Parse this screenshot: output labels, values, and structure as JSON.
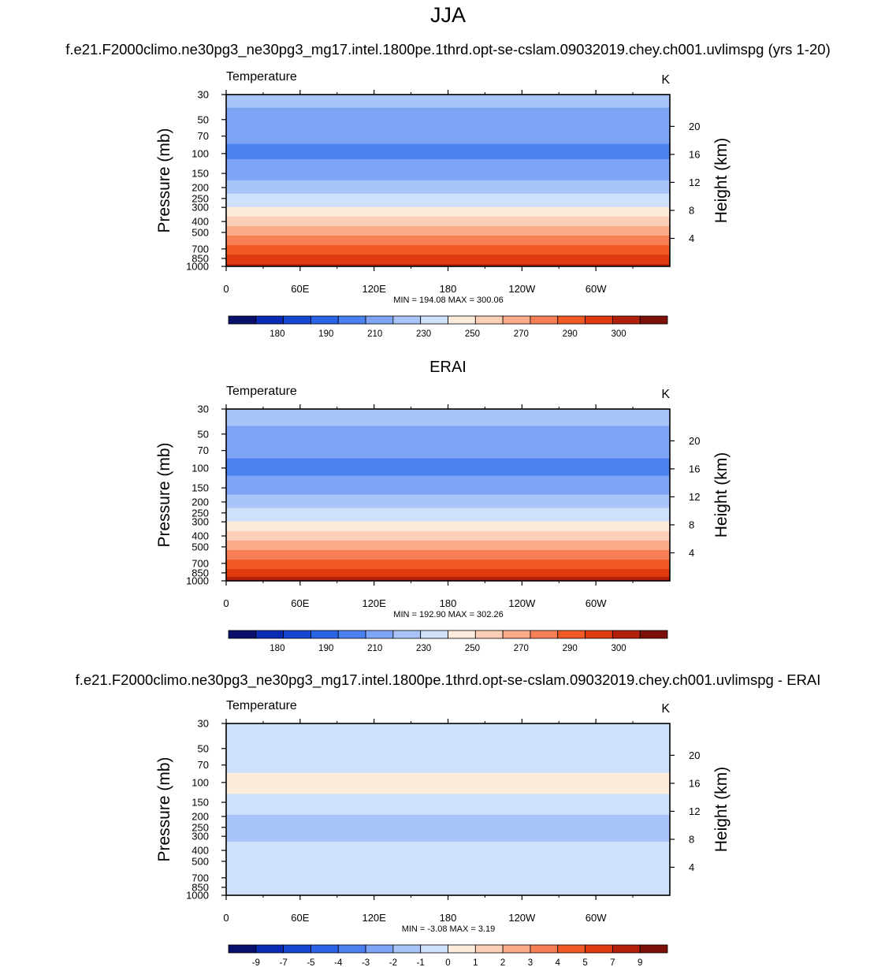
{
  "header": {
    "season": "JJA",
    "case_name": "f.e21.F2000climo.ne30pg3_ne30pg3_mg17.intel.1800pe.1thrd.opt-se-cslam.09032019.chey.ch001.uvlimspg (yrs 1-20)",
    "reference_name": "ERAI",
    "difference_name": "f.e21.F2000climo.ne30pg3_ne30pg3_mg17.intel.1800pe.1thrd.opt-se-cslam.09032019.chey.ch001.uvlimspg - ERAI"
  },
  "colors": {
    "temperature_palette": [
      "#08106b",
      "#0a2cb4",
      "#1547d2",
      "#2a63e6",
      "#4a80f0",
      "#7ea4f6",
      "#a8c4f8",
      "#cfe0fb",
      "#fdebdc",
      "#fcd0b8",
      "#fbab8a",
      "#f77f55",
      "#f25a25",
      "#e03a10",
      "#b21f0a",
      "#7c1008"
    ],
    "difference_palette": [
      "#08106b",
      "#0a2cb4",
      "#1547d2",
      "#2a63e6",
      "#4a80f0",
      "#7ea4f6",
      "#a8c4f8",
      "#cfe0fb",
      "#fdebdc",
      "#fcd0b8",
      "#fbab8a",
      "#f77f55",
      "#f25a25",
      "#e03a10",
      "#b21f0a",
      "#7c1008"
    ],
    "land_mask": "#000000"
  },
  "chart_data": [
    {
      "type": "heatmap",
      "id": "test",
      "left_title": "Temperature",
      "units": "K",
      "ylabel": "Pressure (mb)",
      "ylabel_right": "Height (km)",
      "pressure_ticks": [
        30,
        50,
        70,
        100,
        150,
        200,
        250,
        300,
        400,
        500,
        700,
        850,
        1000
      ],
      "height_ticks": [
        4,
        8,
        12,
        16,
        20
      ],
      "lon_ticks": [
        "0",
        "60E",
        "120E",
        "180",
        "120W",
        "60W"
      ],
      "xlim": [
        0,
        360
      ],
      "ylim": [
        1000,
        30
      ],
      "stats": "MIN = 194.08  MAX = 300.06",
      "colorbar_labels": [
        "180",
        "190",
        "210",
        "230",
        "250",
        "270",
        "290",
        "300"
      ],
      "color_levels": [
        175,
        180,
        185,
        190,
        200,
        210,
        220,
        230,
        240,
        250,
        260,
        270,
        280,
        290,
        295,
        300
      ],
      "profile": [
        {
          "p": 30,
          "t": 212
        },
        {
          "p": 50,
          "t": 208
        },
        {
          "p": 70,
          "t": 203
        },
        {
          "p": 100,
          "t": 197
        },
        {
          "p": 150,
          "t": 206
        },
        {
          "p": 200,
          "t": 215
        },
        {
          "p": 250,
          "t": 223
        },
        {
          "p": 300,
          "t": 231
        },
        {
          "p": 400,
          "t": 246
        },
        {
          "p": 500,
          "t": 257
        },
        {
          "p": 700,
          "t": 274
        },
        {
          "p": 850,
          "t": 284
        },
        {
          "p": 1000,
          "t": 293
        }
      ]
    },
    {
      "type": "heatmap",
      "id": "reference",
      "left_title": "Temperature",
      "units": "K",
      "ylabel": "Pressure (mb)",
      "ylabel_right": "Height (km)",
      "pressure_ticks": [
        30,
        50,
        70,
        100,
        150,
        200,
        250,
        300,
        400,
        500,
        700,
        850,
        1000
      ],
      "height_ticks": [
        4,
        8,
        12,
        16,
        20
      ],
      "lon_ticks": [
        "0",
        "60E",
        "120E",
        "180",
        "120W",
        "60W"
      ],
      "xlim": [
        0,
        360
      ],
      "ylim": [
        1000,
        30
      ],
      "stats": "MIN = 192.90  MAX = 302.26",
      "colorbar_labels": [
        "180",
        "190",
        "210",
        "230",
        "250",
        "270",
        "290",
        "300"
      ],
      "color_levels": [
        175,
        180,
        185,
        190,
        200,
        210,
        220,
        230,
        240,
        250,
        260,
        270,
        280,
        290,
        295,
        300
      ],
      "profile": [
        {
          "p": 30,
          "t": 214
        },
        {
          "p": 50,
          "t": 208
        },
        {
          "p": 70,
          "t": 203
        },
        {
          "p": 100,
          "t": 196
        },
        {
          "p": 150,
          "t": 206
        },
        {
          "p": 200,
          "t": 215
        },
        {
          "p": 250,
          "t": 223
        },
        {
          "p": 300,
          "t": 231
        },
        {
          "p": 400,
          "t": 246
        },
        {
          "p": 500,
          "t": 257
        },
        {
          "p": 700,
          "t": 274
        },
        {
          "p": 850,
          "t": 285
        },
        {
          "p": 1000,
          "t": 294
        }
      ]
    },
    {
      "type": "heatmap",
      "id": "difference",
      "left_title": "Temperature",
      "units": "K",
      "ylabel": "Pressure (mb)",
      "ylabel_right": "Height (km)",
      "pressure_ticks": [
        30,
        50,
        70,
        100,
        150,
        200,
        250,
        300,
        400,
        500,
        700,
        850,
        1000
      ],
      "height_ticks": [
        4,
        8,
        12,
        16,
        20
      ],
      "lon_ticks": [
        "0",
        "60E",
        "120E",
        "180",
        "120W",
        "60W"
      ],
      "xlim": [
        0,
        360
      ],
      "ylim": [
        1000,
        30
      ],
      "stats": "MIN =  -3.08  MAX =   3.19",
      "colorbar_labels": [
        "-9",
        "-7",
        "-5",
        "-4",
        "-3",
        "-2",
        "-1",
        "0",
        "1",
        "2",
        "3",
        "4",
        "5",
        "7",
        "9"
      ],
      "color_levels": [
        -9,
        -7,
        -5,
        -4,
        -3,
        -2,
        -1,
        0,
        1,
        2,
        3,
        4,
        5,
        7,
        9
      ],
      "profile": [
        {
          "p": 30,
          "t": -0.6
        },
        {
          "p": 50,
          "t": -0.6
        },
        {
          "p": 70,
          "t": -0.4
        },
        {
          "p": 100,
          "t": 0.4
        },
        {
          "p": 150,
          "t": -0.3
        },
        {
          "p": 200,
          "t": -1.1
        },
        {
          "p": 250,
          "t": -1.2
        },
        {
          "p": 300,
          "t": -1.1
        },
        {
          "p": 400,
          "t": -0.8
        },
        {
          "p": 500,
          "t": -0.6
        },
        {
          "p": 700,
          "t": -0.3
        },
        {
          "p": 850,
          "t": -0.5
        },
        {
          "p": 1000,
          "t": -0.3
        }
      ]
    }
  ]
}
